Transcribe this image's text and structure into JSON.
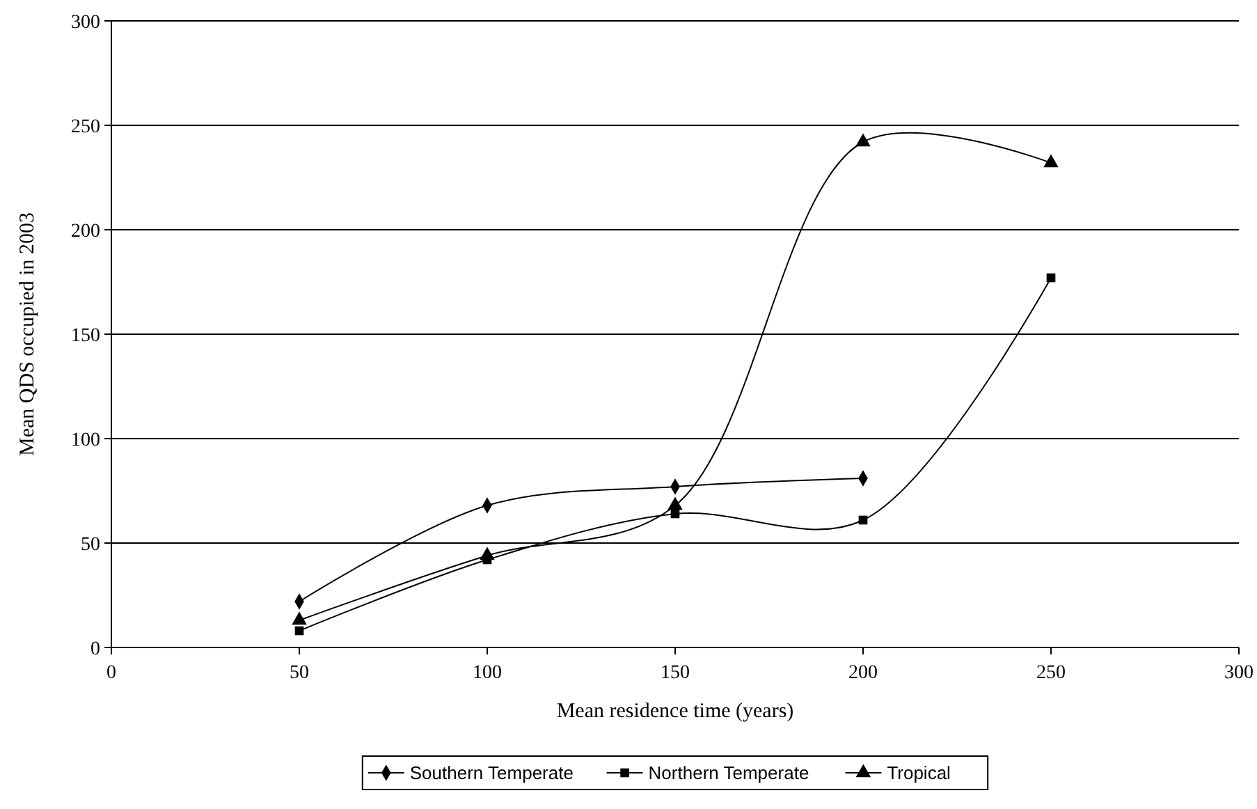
{
  "chart_data": {
    "type": "line",
    "xlabel": "Mean residence time (years)",
    "ylabel": "Mean QDS occupied in 2003",
    "x": [
      50,
      100,
      150,
      200,
      250
    ],
    "series": [
      {
        "name": "Southern Temperate",
        "color": "#000000",
        "marker": "diamond",
        "values": [
          22,
          68,
          77,
          81,
          null
        ]
      },
      {
        "name": "Northern Temperate",
        "color": "#000000",
        "marker": "square",
        "values": [
          8,
          42,
          64,
          61,
          177
        ]
      },
      {
        "name": "Tropical",
        "color": "#000000",
        "marker": "triangle",
        "values": [
          13,
          44,
          68,
          242,
          232
        ]
      }
    ],
    "xlim": [
      0,
      300
    ],
    "xticks": [
      0,
      50,
      100,
      150,
      200,
      250,
      300
    ],
    "ylim": [
      0,
      300
    ],
    "yticks": [
      0,
      50,
      100,
      150,
      200,
      250,
      300
    ],
    "grid": "y",
    "legend": "bottom",
    "line_style": "solid"
  }
}
